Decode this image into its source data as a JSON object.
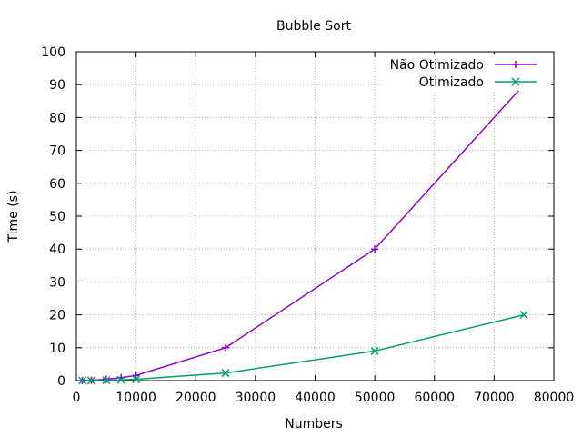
{
  "chart_data": {
    "type": "line",
    "title": "Bubble Sort",
    "xlabel": "Numbers",
    "ylabel": "Time (s)",
    "xlim": [
      0,
      80000
    ],
    "ylim": [
      0,
      100
    ],
    "xticks": [
      0,
      10000,
      20000,
      30000,
      40000,
      50000,
      60000,
      70000,
      80000
    ],
    "yticks": [
      0,
      10,
      20,
      30,
      40,
      50,
      60,
      70,
      80,
      90,
      100
    ],
    "grid": true,
    "legend_position": "top-right",
    "series": [
      {
        "name": "Não Otimizado",
        "color": "#9400d3",
        "marker": "plus",
        "x": [
          1000,
          2500,
          5000,
          7500,
          10000,
          25000,
          50000,
          75000
        ],
        "y": [
          0.0,
          0.1,
          0.4,
          0.9,
          1.6,
          10.0,
          40.0,
          90.0
        ]
      },
      {
        "name": "Otimizado",
        "color": "#009e73",
        "marker": "cross",
        "x": [
          1000,
          2500,
          5000,
          7500,
          10000,
          25000,
          50000,
          75000
        ],
        "y": [
          0.0,
          0.0,
          0.1,
          0.2,
          0.4,
          2.3,
          9.0,
          20.0
        ]
      }
    ]
  }
}
